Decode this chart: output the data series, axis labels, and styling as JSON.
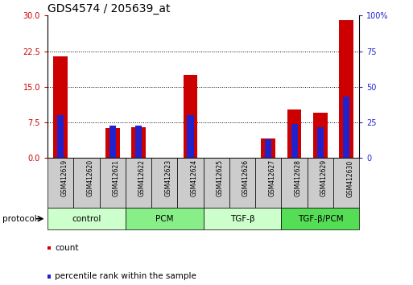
{
  "title": "GDS4574 / 205639_at",
  "samples": [
    "GSM412619",
    "GSM412620",
    "GSM412621",
    "GSM412622",
    "GSM412623",
    "GSM412624",
    "GSM412625",
    "GSM412626",
    "GSM412627",
    "GSM412628",
    "GSM412629",
    "GSM412630"
  ],
  "count_values": [
    21.5,
    0.0,
    6.3,
    6.5,
    0.0,
    17.5,
    0.0,
    0.0,
    4.2,
    10.2,
    9.5,
    29.0
  ],
  "percentile_values": [
    9.0,
    0.0,
    6.9,
    6.9,
    0.0,
    9.0,
    0.0,
    0.0,
    3.9,
    7.2,
    6.6,
    13.0
  ],
  "ylim_left": [
    0,
    30
  ],
  "ylim_right": [
    0,
    100
  ],
  "yticks_left": [
    0,
    7.5,
    15,
    22.5,
    30
  ],
  "yticks_right": [
    0,
    25,
    50,
    75,
    100
  ],
  "bar_color": "#cc0000",
  "percentile_color": "#2222cc",
  "bar_width": 0.55,
  "blue_bar_width": 0.25,
  "protocols": [
    {
      "label": "control",
      "start": 0,
      "end": 3,
      "color": "#ccffcc"
    },
    {
      "label": "PCM",
      "start": 3,
      "end": 6,
      "color": "#88ee88"
    },
    {
      "label": "TGF-β",
      "start": 6,
      "end": 9,
      "color": "#ccffcc"
    },
    {
      "label": "TGF-β/PCM",
      "start": 9,
      "end": 12,
      "color": "#55dd55"
    }
  ],
  "protocol_label": "protocol",
  "legend_count_label": "count",
  "legend_percentile_label": "percentile rank within the sample",
  "title_fontsize": 10,
  "tick_fontsize": 7,
  "axis_label_color_left": "#cc0000",
  "axis_label_color_right": "#2222cc",
  "sample_box_color": "#cccccc",
  "fig_bg": "#ffffff"
}
